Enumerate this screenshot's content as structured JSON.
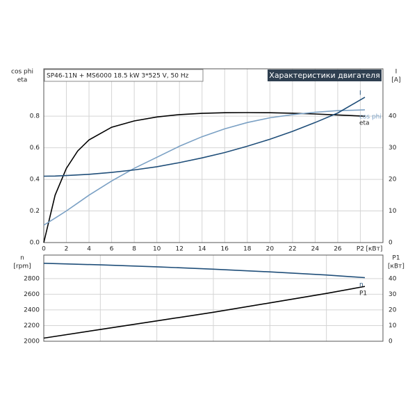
{
  "chart_data": [
    {
      "type": "line",
      "subtitle": "SP46-11N + MS6000   18.5 kW   3*525 V, 50 Hz",
      "title": "Характеристики двигателя",
      "y_label": [
        "cos phi",
        "eta"
      ],
      "y2_label": [
        "I",
        "[A]"
      ],
      "x_unit": "[кВт]",
      "xlim": [
        0,
        30
      ],
      "xticks": [
        0,
        2,
        4,
        6,
        8,
        10,
        12,
        14,
        16,
        18,
        20,
        22,
        24,
        26,
        {
          "value": 28,
          "label": "P2"
        }
      ],
      "ylim": [
        0,
        1.1
      ],
      "yticks": [
        {
          "value": 0,
          "label": "0.0"
        },
        0.2,
        0.4,
        0.6,
        0.8
      ],
      "y2lim": [
        0,
        55
      ],
      "y2ticks": [
        0,
        10,
        20,
        30,
        40
      ],
      "grid": true,
      "x": [
        0,
        1,
        2,
        3,
        4,
        6,
        8,
        10,
        12,
        14,
        16,
        18,
        20,
        22,
        24,
        26,
        28.4
      ],
      "series": [
        {
          "name": "eta",
          "color": "#000000",
          "values": [
            0,
            0.3,
            0.47,
            0.58,
            0.65,
            0.73,
            0.77,
            0.795,
            0.81,
            0.818,
            0.822,
            0.823,
            0.822,
            0.819,
            0.814,
            0.808,
            0.8
          ]
        },
        {
          "name": "cos phi",
          "color": "#7aa0c4",
          "values": [
            0.11,
            0.155,
            0.2,
            0.25,
            0.3,
            0.39,
            0.47,
            0.54,
            0.61,
            0.67,
            0.72,
            0.76,
            0.79,
            0.81,
            0.825,
            0.835,
            0.84
          ]
        },
        {
          "name": "I",
          "color": "#1f4e79",
          "axis": "y2",
          "values": [
            21,
            21.05,
            21.2,
            21.4,
            21.6,
            22.2,
            23,
            24,
            25.3,
            26.8,
            28.5,
            30.5,
            32.7,
            35.2,
            38,
            41,
            46
          ]
        }
      ]
    },
    {
      "type": "line",
      "y_label": [
        "n",
        "[rpm]"
      ],
      "y2_label": [
        "P1",
        "[кВт]"
      ],
      "xlim": [
        0,
        30
      ],
      "xgrid": [
        0,
        5,
        10,
        15,
        20,
        25,
        30
      ],
      "ylim": [
        2000,
        3100
      ],
      "yticks": [
        2000,
        2200,
        2400,
        2600,
        2800
      ],
      "y2lim": [
        0,
        55
      ],
      "y2ticks": [
        0,
        10,
        20,
        30,
        40
      ],
      "grid": true,
      "x": [
        0,
        5,
        10,
        15,
        20,
        25,
        28.4
      ],
      "series": [
        {
          "name": "n",
          "color": "#1f4e79",
          "values": [
            2995,
            2975,
            2950,
            2920,
            2885,
            2845,
            2812
          ]
        },
        {
          "name": "P1",
          "color": "#000000",
          "axis": "y2",
          "values": [
            2,
            7.5,
            13,
            18.5,
            24.5,
            30.5,
            35
          ]
        }
      ]
    }
  ]
}
